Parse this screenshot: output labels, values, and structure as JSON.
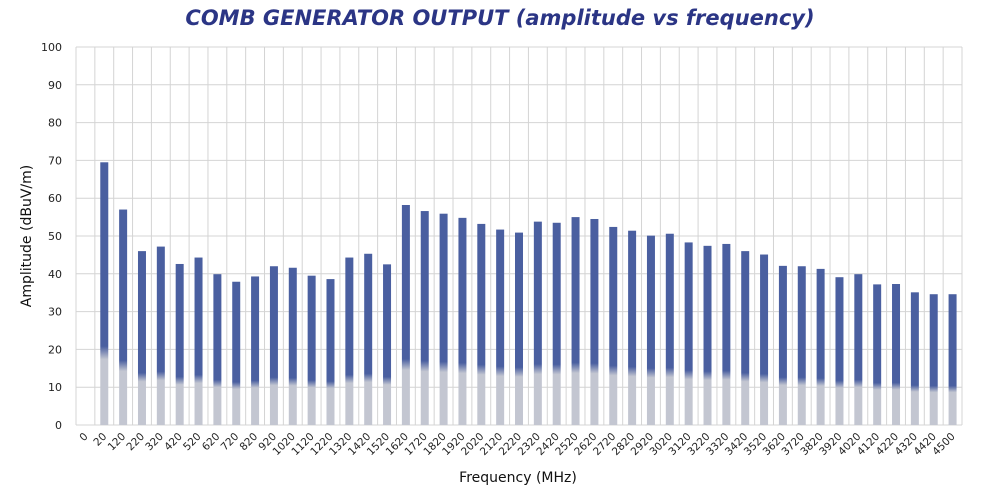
{
  "chart_data": {
    "type": "bar",
    "title": "COMB GENERATOR OUTPUT (amplitude vs frequency)",
    "xlabel": "Frequency (MHz)",
    "ylabel": "Amplitude (dBuV/m)",
    "ylim": [
      0,
      100
    ],
    "yticks": [
      0,
      10,
      20,
      30,
      40,
      50,
      60,
      70,
      80,
      90,
      100
    ],
    "grid": true,
    "legend": "none",
    "categories": [
      "0",
      "20",
      "120",
      "220",
      "320",
      "420",
      "520",
      "620",
      "720",
      "820",
      "920",
      "1020",
      "1120",
      "1220",
      "1320",
      "1420",
      "1520",
      "1620",
      "1720",
      "1820",
      "1920",
      "2020",
      "2120",
      "2220",
      "2320",
      "2420",
      "2520",
      "2620",
      "2720",
      "2820",
      "2920",
      "3020",
      "3120",
      "3220",
      "3320",
      "3420",
      "3520",
      "3620",
      "3720",
      "3820",
      "3920",
      "4020",
      "4120",
      "4220",
      "4320",
      "4420",
      "4500"
    ],
    "values": [
      null,
      69.5,
      57,
      46,
      47.2,
      42.6,
      44.3,
      39.9,
      37.9,
      39.3,
      42,
      41.6,
      39.5,
      38.6,
      44.3,
      45.3,
      42.5,
      58.2,
      56.6,
      55.9,
      54.8,
      53.2,
      51.7,
      50.9,
      53.8,
      53.5,
      55,
      54.5,
      52.4,
      51.4,
      50.1,
      50.6,
      48.3,
      47.4,
      47.9,
      46,
      45.1,
      42.1,
      42,
      41.3,
      39.1,
      39.9,
      37.2,
      37.3,
      35.1,
      34.6,
      34.6
    ],
    "colors": {
      "bar": "#4a5fa0",
      "bar_base": "#c3c6d1",
      "grid": "#d4d4d4",
      "title": "#2b3585"
    }
  }
}
